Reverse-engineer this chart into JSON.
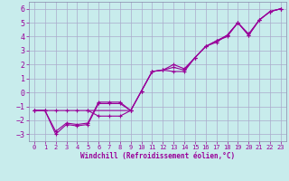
{
  "xlabel": "Windchill (Refroidissement éolien,°C)",
  "bg_color": "#c8ecec",
  "grid_color": "#aaaacc",
  "line_color": "#990099",
  "spine_color": "#8888aa",
  "xlim": [
    -0.5,
    23.5
  ],
  "ylim": [
    -3.5,
    6.5
  ],
  "xticks": [
    0,
    1,
    2,
    3,
    4,
    5,
    6,
    7,
    8,
    9,
    10,
    11,
    12,
    13,
    14,
    15,
    16,
    17,
    18,
    19,
    20,
    21,
    22,
    23
  ],
  "yticks": [
    -3,
    -2,
    -1,
    0,
    1,
    2,
    3,
    4,
    5,
    6
  ],
  "series1_x": [
    0,
    1,
    2,
    3,
    4,
    5,
    6,
    7,
    8,
    9,
    10,
    11,
    12,
    13,
    14,
    15,
    16,
    17,
    18,
    19,
    20,
    21,
    22,
    23
  ],
  "series1_y": [
    -1.3,
    -1.3,
    -3.0,
    -2.3,
    -2.4,
    -2.3,
    -0.8,
    -0.8,
    -0.8,
    -1.3,
    0.1,
    1.5,
    1.6,
    1.5,
    1.5,
    2.5,
    3.3,
    3.6,
    4.1,
    5.0,
    4.1,
    5.2,
    5.8,
    6.0
  ],
  "series2_x": [
    0,
    1,
    2,
    3,
    4,
    5,
    6,
    7,
    8,
    9,
    10,
    11,
    12,
    13,
    14,
    15,
    16,
    17,
    18,
    19,
    20,
    21,
    22,
    23
  ],
  "series2_y": [
    -1.3,
    -1.3,
    -2.8,
    -2.2,
    -2.3,
    -2.2,
    -0.7,
    -0.7,
    -0.7,
    -1.3,
    0.1,
    1.5,
    1.6,
    2.0,
    1.7,
    2.5,
    3.3,
    3.7,
    4.0,
    5.0,
    4.2,
    5.2,
    5.8,
    6.0
  ],
  "series3_x": [
    0,
    1,
    2,
    3,
    4,
    5,
    9,
    10,
    11,
    12,
    13,
    14,
    15,
    16,
    17,
    18,
    19,
    20,
    21,
    22,
    23
  ],
  "series3_y": [
    -1.3,
    -1.3,
    -1.3,
    -1.3,
    -1.3,
    -1.3,
    -1.3,
    0.1,
    1.5,
    1.6,
    1.8,
    1.6,
    2.5,
    3.3,
    3.7,
    4.1,
    5.0,
    4.1,
    5.2,
    5.8,
    6.0
  ],
  "series4_x": [
    5,
    6,
    7,
    8,
    9
  ],
  "series4_y": [
    -1.3,
    -1.7,
    -1.7,
    -1.7,
    -1.3
  ]
}
